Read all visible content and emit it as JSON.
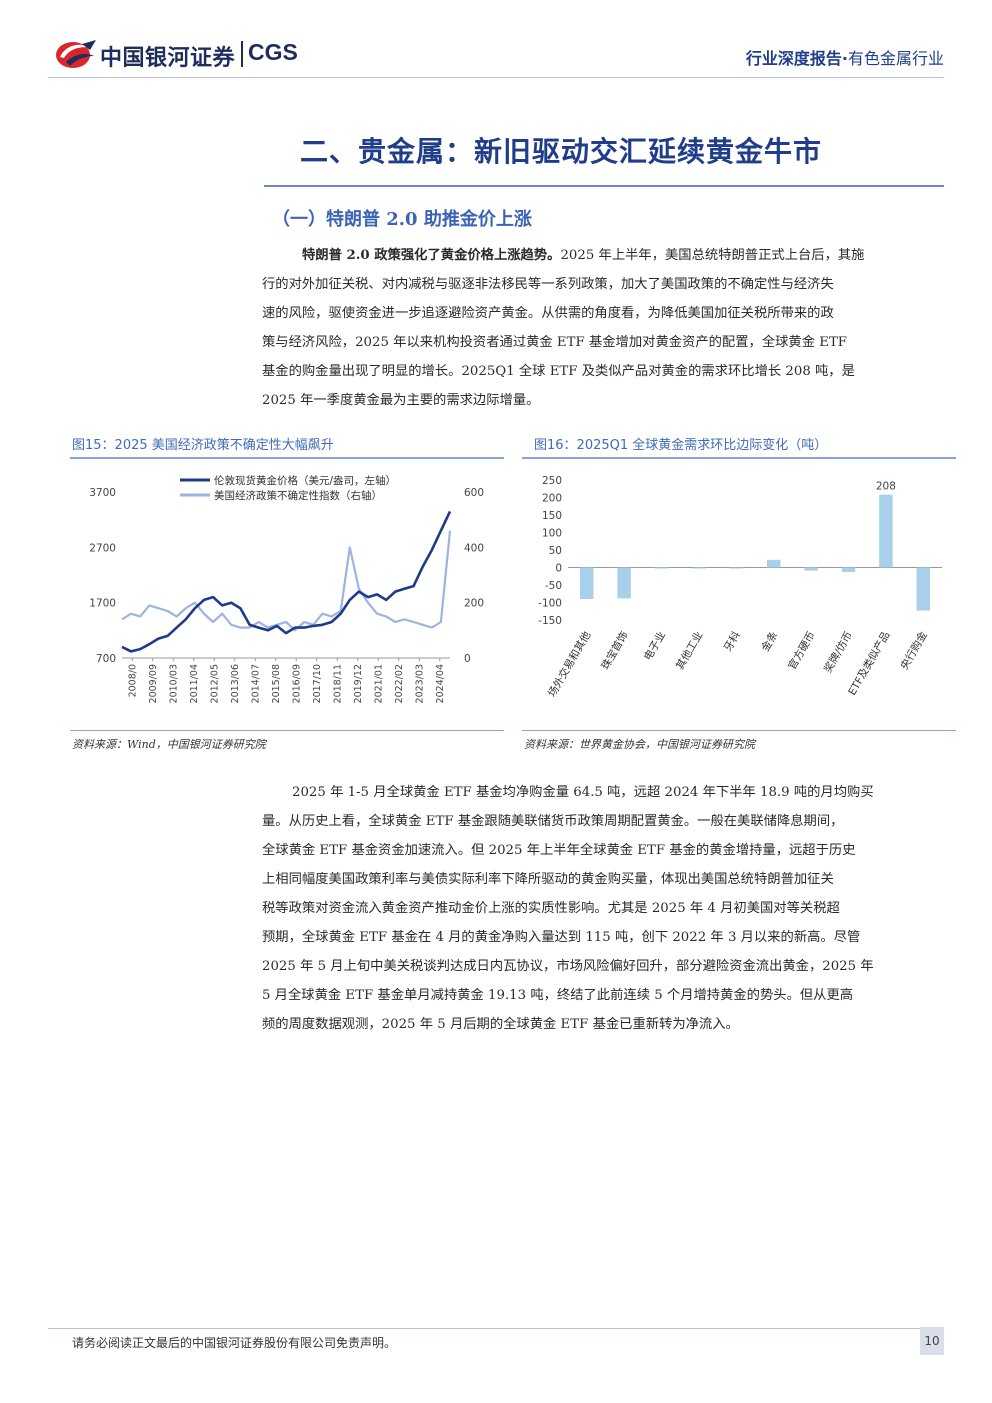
{
  "header": {
    "brand_cn": "中国银河证券",
    "brand_en": "CGS",
    "report_type": "行业深度报告·",
    "industry": "有色金属行业"
  },
  "section": {
    "title": "二、贵金属：新旧驱动交汇延续黄金牛市",
    "subtitle": "（一）特朗普 2.0 助推金价上涨"
  },
  "paragraph1": {
    "lead": "特朗普 2.0 政策强化了黄金价格上涨趋势。",
    "lines": [
      "2025 年上半年，美国总统特朗普正式上台后，其施",
      "行的对外加征关税、对内减税与驱逐非法移民等一系列政策，加大了美国政策的不确定性与经济失",
      "速的风险，驱使资金进一步追逐避险资产黄金。从供需的角度看，为降低美国加征关税所带来的政",
      "策与经济风险，2025 年以来机构投资者通过黄金 ETF 基金增加对黄金资产的配置，全球黄金 ETF",
      "基金的购金量出现了明显的增长。2025Q1 全球 ETF 及类似产品对黄金的需求环比增长 208 吨，是",
      "2025 年一季度黄金最为主要的需求边际增量。"
    ]
  },
  "figure15": {
    "title": "图15：2025 美国经济政策不确定性大幅飙升",
    "source": "资料来源：Wind，中国银河证券研究院"
  },
  "figure16": {
    "title": "图16：2025Q1 全球黄金需求环比边际变化（吨）",
    "source": "资料来源：世界黄金协会，中国银河证券研究院"
  },
  "chart_data": [
    {
      "type": "line",
      "legend": [
        "伦敦现货黄金价格（美元/盎司，左轴）",
        "美国经济政策不确定性指数（右轴）"
      ],
      "legend_position": "top-left",
      "y_left": {
        "ticks": [
          "3700",
          "2700",
          "1700",
          "700"
        ],
        "range": [
          700,
          3700
        ]
      },
      "y_right": {
        "ticks": [
          "600",
          "400",
          "200",
          "0"
        ],
        "range": [
          0,
          600
        ]
      },
      "x_ticks": [
        "2008/0",
        "2009/09",
        "2010/03",
        "2011/04",
        "2012/05",
        "2013/06",
        "2014/07",
        "2015/08",
        "2016/09",
        "2017/10",
        "2018/11",
        "2019/12",
        "2021/01",
        "2022/02",
        "2023/03",
        "2024/04"
      ],
      "colors": {
        "gold": "#1f3a8a",
        "epu": "#9db3e0"
      },
      "series": [
        {
          "name": "伦敦现货黄金价格（美元/盎司，左轴）",
          "axis": "left",
          "values": [
            900,
            820,
            860,
            950,
            1050,
            1100,
            1250,
            1400,
            1600,
            1750,
            1800,
            1650,
            1700,
            1600,
            1300,
            1250,
            1200,
            1280,
            1150,
            1250,
            1250,
            1280,
            1300,
            1350,
            1500,
            1750,
            1900,
            1800,
            1850,
            1750,
            1900,
            1950,
            2000,
            2350,
            2650,
            3000,
            3350
          ]
        },
        {
          "name": "美国经济政策不确定性指数（右轴）",
          "axis": "right",
          "values": [
            140,
            160,
            150,
            190,
            180,
            170,
            150,
            180,
            200,
            160,
            130,
            160,
            120,
            110,
            110,
            130,
            110,
            120,
            130,
            100,
            130,
            120,
            160,
            150,
            170,
            400,
            250,
            200,
            160,
            150,
            130,
            140,
            130,
            120,
            110,
            130,
            460
          ]
        }
      ]
    },
    {
      "type": "bar",
      "categories": [
        "场外交易和其他",
        "珠宝首饰",
        "电子业",
        "其他工业",
        "牙科",
        "金条",
        "官方硬币",
        "奖牌/仿币",
        "ETF及类似产品",
        "央行购金"
      ],
      "values": [
        -90,
        -88,
        -2,
        -1,
        -1,
        22,
        -9,
        -13,
        208,
        -123
      ],
      "data_labels": {
        "ETF及类似产品": "208"
      },
      "ylim": [
        -150,
        250
      ],
      "y_ticks": [
        "250",
        "200",
        "150",
        "100",
        "50",
        "0",
        "-50",
        "-100",
        "-150"
      ],
      "color": "#a9d0ea"
    }
  ],
  "paragraph2": {
    "lines": [
      "2025 年 1-5 月全球黄金 ETF 基金均净购金量 64.5 吨，远超 2024 年下半年 18.9 吨的月均购买",
      "量。从历史上看，全球黄金 ETF 基金跟随美联储货币政策周期配置黄金。一般在美联储降息期间，",
      "全球黄金 ETF 基金资金加速流入。但 2025 年上半年全球黄金 ETF 基金的黄金增持量，远超于历史",
      "上相同幅度美国政策利率与美债实际利率下降所驱动的黄金购买量，体现出美国总统特朗普加征关",
      "税等政策对资金流入黄金资产推动金价上涨的实质性影响。尤其是 2025 年 4 月初美国对等关税超",
      "预期，全球黄金 ETF 基金在 4 月的黄金净购入量达到 115 吨，创下 2022 年 3 月以来的新高。尽管",
      "2025 年 5 月上旬中美关税谈判达成日内瓦协议，市场风险偏好回升，部分避险资金流出黄金，2025 年",
      "5 月全球黄金 ETF 基金单月减持黄金 19.13 吨，终结了此前连续 5 个月增持黄金的势头。但从更高",
      "频的周度数据观测，2025 年 5 月后期的全球黄金 ETF 基金已重新转为净流入。"
    ]
  },
  "footer": {
    "disclaimer": "请务必阅读正文最后的中国银河证券股份有限公司免责声明。",
    "page": "10"
  }
}
